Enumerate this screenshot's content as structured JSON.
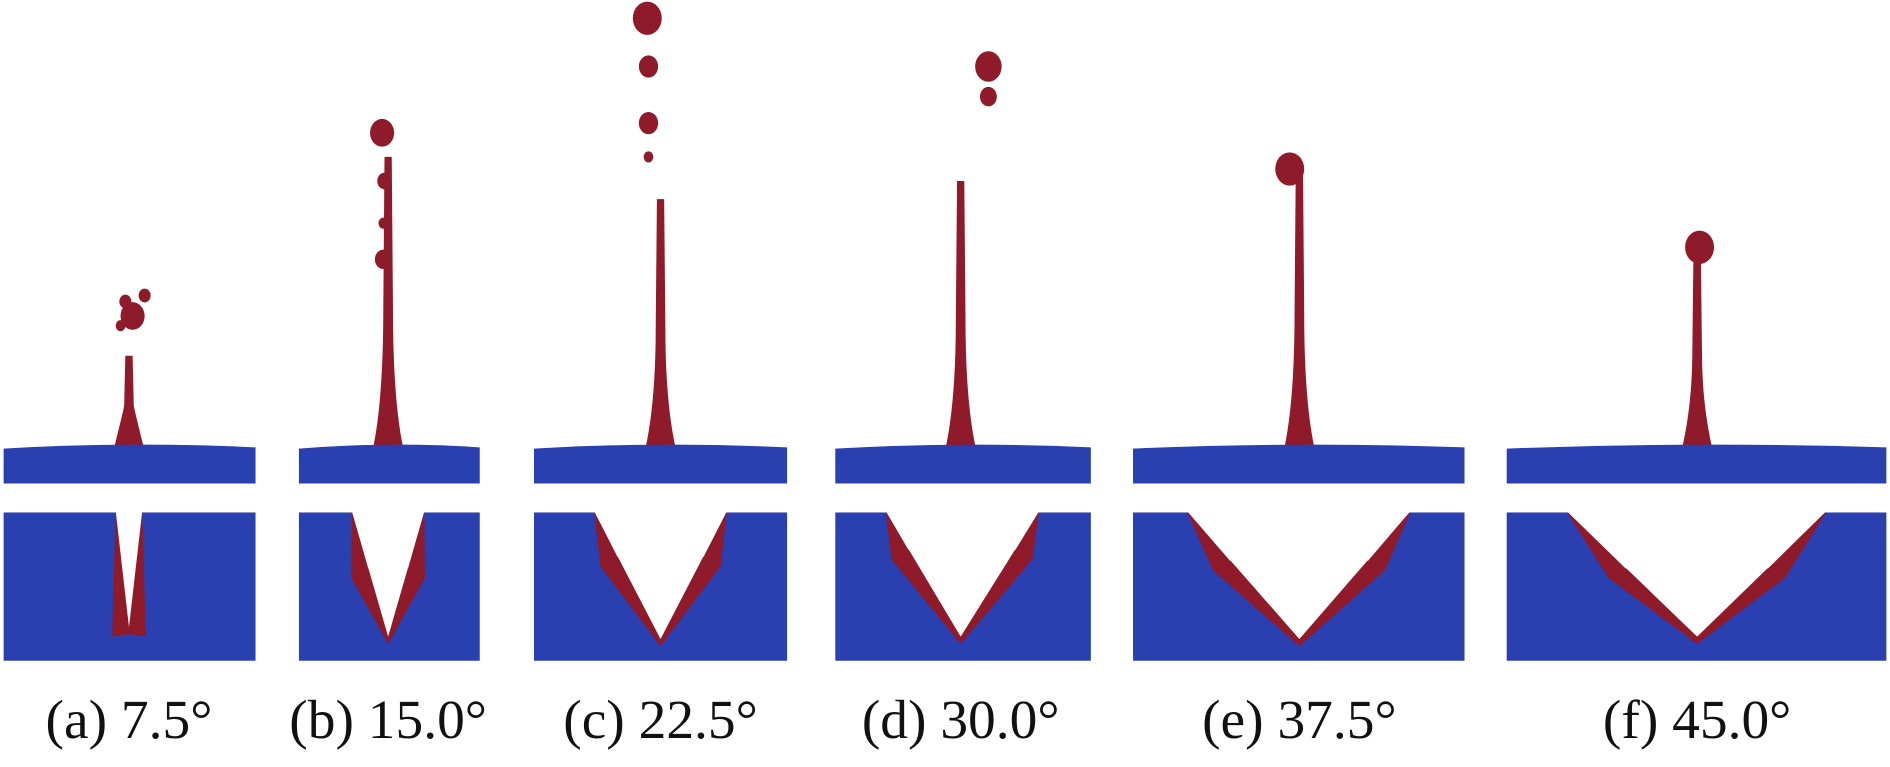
{
  "figure": {
    "panels": [
      {
        "label": "(a) 7.5°"
      },
      {
        "label": "(b) 15.0°"
      },
      {
        "label": "(c) 22.5°"
      },
      {
        "label": "(d) 30.0°"
      },
      {
        "label": "(e) 37.5°"
      },
      {
        "label": "(f) 45.0°"
      }
    ]
  }
}
